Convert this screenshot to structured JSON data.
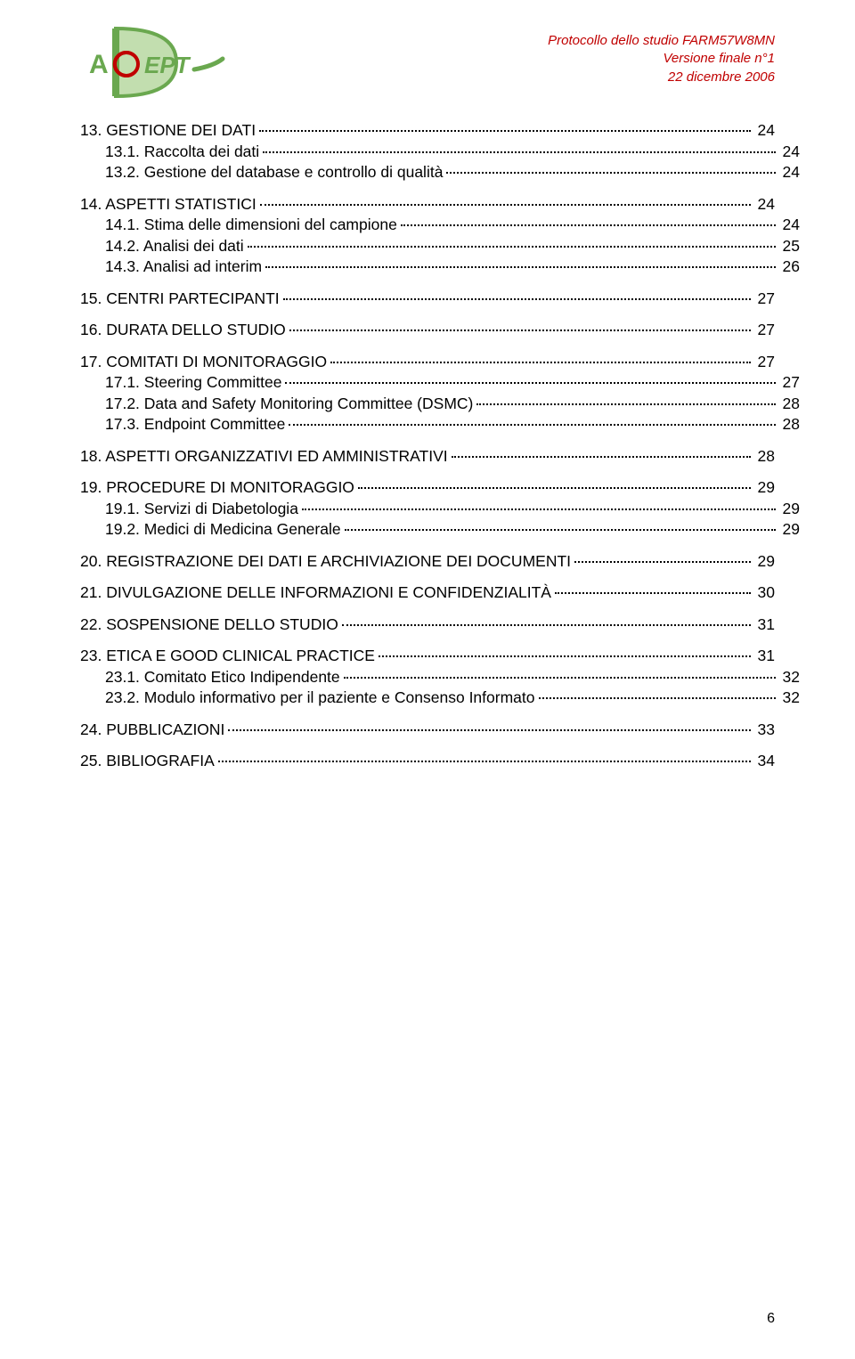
{
  "colors": {
    "text": "#000000",
    "header_text": "#c00000",
    "logo_green_dark": "#6aa84f",
    "logo_green_light": "#a8d08d",
    "logo_red": "#c00000",
    "background": "#ffffff"
  },
  "typography": {
    "body_fontsize_pt": 12,
    "header_fontsize_pt": 11,
    "font_family": "Arial"
  },
  "header": {
    "line1": "Protocollo dello studio FARM57W8MN",
    "line2": "Versione finale n°1",
    "line3": "22 dicembre 2006",
    "logo_text": "ACCEPT"
  },
  "toc": [
    {
      "level": 1,
      "label": "13. GESTIONE DEI DATI",
      "page": "24"
    },
    {
      "level": 2,
      "label": "13.1. Raccolta dei dati",
      "page": "24"
    },
    {
      "level": 2,
      "label": "13.2. Gestione del database e controllo di qualità",
      "page": "24"
    },
    {
      "level": 1,
      "label": "14. ASPETTI STATISTICI",
      "page": "24"
    },
    {
      "level": 2,
      "label": "14.1. Stima delle dimensioni del campione",
      "page": "24"
    },
    {
      "level": 2,
      "label": "14.2. Analisi dei dati",
      "page": "25"
    },
    {
      "level": 2,
      "label": "14.3. Analisi ad interim",
      "page": "26"
    },
    {
      "level": 1,
      "label": "15. CENTRI PARTECIPANTI",
      "page": "27"
    },
    {
      "level": 1,
      "label": "16. DURATA DELLO STUDIO",
      "page": "27"
    },
    {
      "level": 1,
      "label": "17. COMITATI DI MONITORAGGIO",
      "page": "27"
    },
    {
      "level": 2,
      "label": "17.1. Steering Committee",
      "page": "27"
    },
    {
      "level": 2,
      "label": "17.2. Data and Safety Monitoring Committee (DSMC)",
      "page": "28"
    },
    {
      "level": 2,
      "label": "17.3. Endpoint Committee",
      "page": "28"
    },
    {
      "level": 1,
      "label": "18. ASPETTI ORGANIZZATIVI ED AMMINISTRATIVI",
      "page": "28"
    },
    {
      "level": 1,
      "label": "19. PROCEDURE DI MONITORAGGIO",
      "page": "29"
    },
    {
      "level": 2,
      "label": "19.1. Servizi di Diabetologia",
      "page": "29"
    },
    {
      "level": 2,
      "label": "19.2. Medici di Medicina Generale",
      "page": "29"
    },
    {
      "level": 1,
      "label": "20. REGISTRAZIONE DEI DATI E ARCHIVIAZIONE DEI DOCUMENTI",
      "page": "29"
    },
    {
      "level": 1,
      "label": "21. DIVULGAZIONE DELLE INFORMAZIONI E CONFIDENZIALITÀ",
      "page": "30"
    },
    {
      "level": 1,
      "label": "22. SOSPENSIONE DELLO STUDIO",
      "page": "31"
    },
    {
      "level": 1,
      "label": "23. ETICA E GOOD CLINICAL PRACTICE",
      "page": "31"
    },
    {
      "level": 2,
      "label": "23.1. Comitato Etico Indipendente",
      "page": "32"
    },
    {
      "level": 2,
      "label": "23.2. Modulo informativo per il paziente e Consenso Informato",
      "page": "32"
    },
    {
      "level": 1,
      "label": "24. PUBBLICAZIONI",
      "page": "33"
    },
    {
      "level": 1,
      "label": "25. BIBLIOGRAFIA",
      "page": "34"
    }
  ],
  "footer": {
    "page_number": "6"
  }
}
